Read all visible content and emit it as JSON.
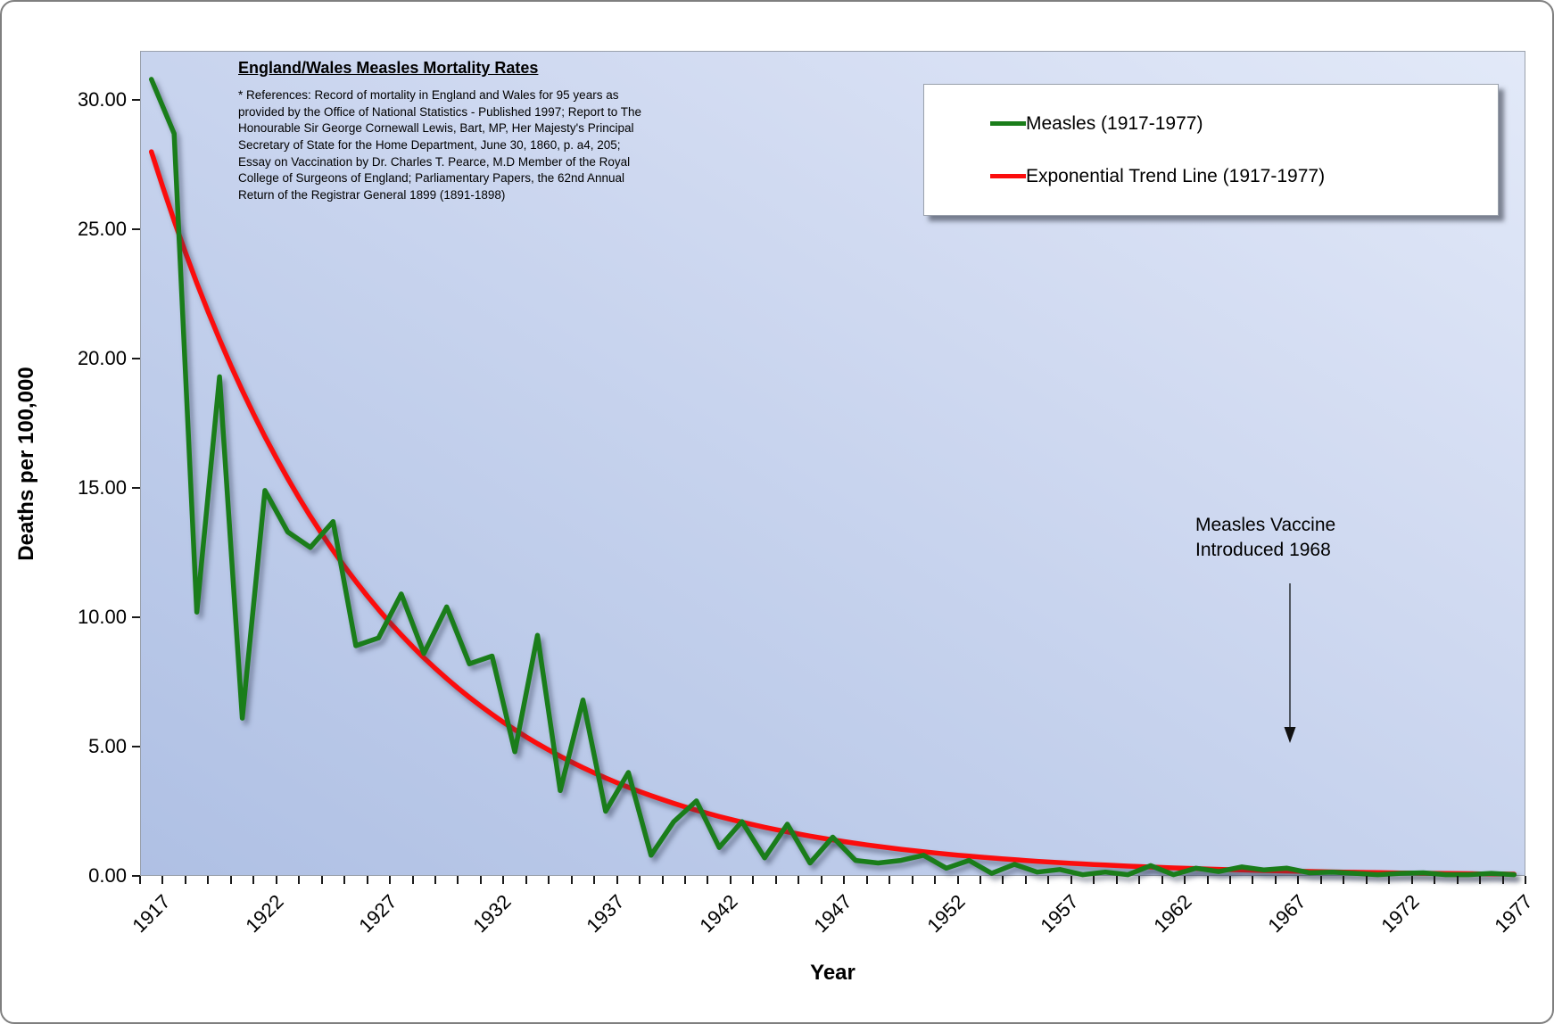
{
  "title": "England/Wales Measles Mortality Rates",
  "references": "* References: Record of mortality in England and Wales for 95 years as provided by the Office of National Statistics - Published 1997; Report to The Honourable Sir George Cornewall Lewis, Bart, MP, Her Majesty's Principal Secretary of State for the Home Department, June 30, 1860, p. a4, 205; Essay on Vaccination by Dr. Charles T. Pearce, M.D Member of the Royal College of Surgeons of England; Parliamentary Papers, the 62nd Annual Return of the Registrar General 1899 (1891-1898)",
  "axes": {
    "x_title": "Year",
    "y_title": "Deaths per 100,000",
    "y_tick_labels": [
      "30.00",
      "25.00",
      "20.00",
      "15.00",
      "10.00",
      "5.00",
      "0.00"
    ],
    "y_tick_values": [
      30,
      25,
      20,
      15,
      10,
      5,
      0
    ],
    "x_tick_labels": [
      "1917",
      "1922",
      "1927",
      "1932",
      "1937",
      "1942",
      "1947",
      "1952",
      "1957",
      "1962",
      "1967",
      "1972",
      "1977"
    ]
  },
  "legend": {
    "items": [
      {
        "label": "Measles (1917-1977)",
        "color": "#1a7d1a"
      },
      {
        "label": "Exponential Trend Line (1917-1977)",
        "color": "#fb0d0d"
      }
    ]
  },
  "annotation": {
    "line1": "Measles Vaccine",
    "line2": "Introduced 1968",
    "arrow_points_to_year": 1967
  },
  "chart_data": {
    "type": "line",
    "title": "England/Wales Measles Mortality Rates",
    "xlabel": "Year",
    "ylabel": "Deaths per 100,000",
    "x_range": [
      1917,
      1977
    ],
    "x_step": 1,
    "ylim": [
      0,
      31.9
    ],
    "grid": false,
    "legend_position": "top-right-inside",
    "x": [
      1917,
      1918,
      1919,
      1920,
      1921,
      1922,
      1923,
      1924,
      1925,
      1926,
      1927,
      1928,
      1929,
      1930,
      1931,
      1932,
      1933,
      1934,
      1935,
      1936,
      1937,
      1938,
      1939,
      1940,
      1941,
      1942,
      1943,
      1944,
      1945,
      1946,
      1947,
      1948,
      1949,
      1950,
      1951,
      1952,
      1953,
      1954,
      1955,
      1956,
      1957,
      1958,
      1959,
      1960,
      1961,
      1962,
      1963,
      1964,
      1965,
      1966,
      1967,
      1968,
      1969,
      1970,
      1971,
      1972,
      1973,
      1974,
      1975,
      1976,
      1977
    ],
    "series": [
      {
        "name": "Measles (1917-1977)",
        "color": "#1a7d1a",
        "values": [
          30.8,
          28.7,
          10.2,
          19.3,
          6.1,
          14.9,
          13.3,
          12.7,
          13.7,
          8.9,
          9.2,
          10.9,
          8.6,
          10.4,
          8.2,
          8.5,
          4.8,
          9.3,
          3.3,
          6.8,
          2.5,
          4.0,
          0.8,
          2.1,
          2.9,
          1.1,
          2.1,
          0.7,
          2.0,
          0.5,
          1.5,
          0.6,
          0.5,
          0.6,
          0.8,
          0.3,
          0.6,
          0.1,
          0.45,
          0.15,
          0.25,
          0.05,
          0.15,
          0.05,
          0.4,
          0.05,
          0.3,
          0.17,
          0.35,
          0.23,
          0.3,
          0.12,
          0.15,
          0.1,
          0.05,
          0.1,
          0.12,
          0.05,
          0.05,
          0.1,
          0.05
        ]
      },
      {
        "name": "Exponential Trend Line (1917-1977)",
        "color": "#fb0d0d",
        "trend": {
          "type": "exponential",
          "start_year": 1917,
          "start_value": 28.0,
          "decay_rate_per_year": 0.1,
          "end_value_1977": 0.07
        }
      }
    ]
  }
}
